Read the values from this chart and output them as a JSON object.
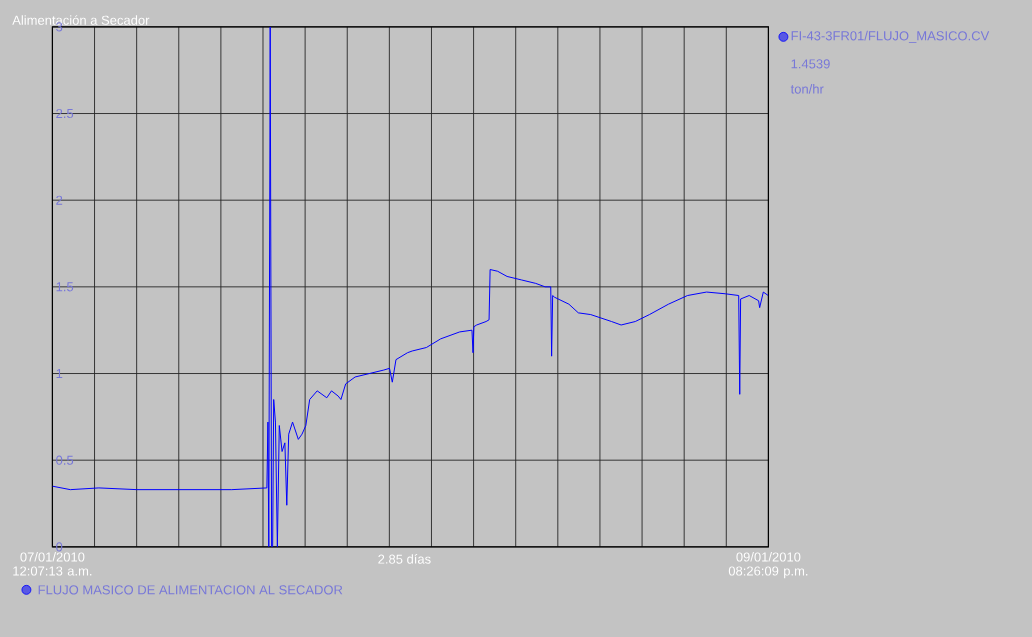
{
  "chart_data": {
    "type": "line",
    "title": "Alimentación a Secador",
    "xlabel": "2.85 días",
    "series": [
      {
        "name": "FI-43-3FR01/FLUJO_MASICO.CV",
        "color": "#0000ff",
        "x": [
          "2010-01-07T00:07:13",
          "2010-01-07T01:50",
          "2010-01-07T04:33",
          "2010-01-07T08:11",
          "2010-01-07T12:42",
          "2010-01-07T17:14",
          "2010-01-07T20:35",
          "2010-01-07T20:41",
          "2010-01-07T20:46",
          "2010-01-07T20:54",
          "2010-01-07T21:02",
          "2010-01-07T21:08",
          "2010-01-07T21:14",
          "2010-01-07T21:24",
          "2010-01-07T21:35",
          "2010-01-07T21:46",
          "2010-01-07T22:02",
          "2010-01-07T22:18",
          "2010-01-07T22:29",
          "2010-01-07T22:40",
          "2010-01-07T23:02",
          "2010-01-07T23:35",
          "2010-01-07T23:56",
          "2010-01-08T00:18",
          "2010-01-08T00:40",
          "2010-01-08T01:23",
          "2010-01-08T02:18",
          "2010-01-08T02:45",
          "2010-01-08T03:23",
          "2010-01-08T03:39",
          "2010-01-08T04:06",
          "2010-01-08T05:00",
          "2010-01-08T06:22",
          "2010-01-08T07:44",
          "2010-01-08T08:17",
          "2010-01-08T08:33",
          "2010-01-08T08:54",
          "2010-01-08T10:00",
          "2010-01-08T10:27",
          "2010-01-08T11:48",
          "2010-01-08T13:10",
          "2010-01-08T14:59",
          "2010-01-08T16:09",
          "2010-01-08T16:15",
          "2010-01-08T16:20",
          "2010-01-08T16:36",
          "2010-01-08T17:30",
          "2010-01-08T17:47",
          "2010-01-08T17:53",
          "2010-01-08T18:36",
          "2010-01-08T19:30",
          "2010-01-08T20:52",
          "2010-01-08T22:14",
          "2010-01-08T23:08",
          "2010-01-08T23:40",
          "2010-01-08T23:45",
          "2010-01-08T23:51",
          "2010-01-09T00:02",
          "2010-01-09T01:24",
          "2010-01-09T02:18",
          "2010-01-09T03:29",
          "2010-01-09T05:28",
          "2010-01-09T06:23",
          "2010-01-09T07:44",
          "2010-01-09T09:05",
          "2010-01-09T10:54",
          "2010-01-09T12:43",
          "2010-01-09T14:32",
          "2010-01-09T16:20",
          "2010-01-09T17:36",
          "2010-01-09T17:42",
          "2010-01-09T17:47",
          "2010-01-09T18:36",
          "2010-01-09T19:30",
          "2010-01-09T19:36",
          "2010-01-09T19:57",
          "2010-01-09T20:25"
        ],
        "values": [
          0.35,
          0.33,
          0.34,
          0.33,
          0.33,
          0.33,
          0.34,
          0.72,
          0,
          3.0,
          0,
          0,
          0.85,
          0.72,
          0,
          0.7,
          0.55,
          0.6,
          0.24,
          0.65,
          0.72,
          0.62,
          0.65,
          0.7,
          0.85,
          0.9,
          0.86,
          0.9,
          0.87,
          0.85,
          0.94,
          0.98,
          1.0,
          1.02,
          1.03,
          0.95,
          1.08,
          1.12,
          1.13,
          1.15,
          1.2,
          1.24,
          1.25,
          1.12,
          1.27,
          1.28,
          1.3,
          1.31,
          1.6,
          1.59,
          1.56,
          1.54,
          1.52,
          1.5,
          1.5,
          1.1,
          1.45,
          1.44,
          1.4,
          1.35,
          1.34,
          1.3,
          1.28,
          1.3,
          1.34,
          1.4,
          1.45,
          1.47,
          1.46,
          1.45,
          0.88,
          1.43,
          1.45,
          1.42,
          1.38,
          1.47,
          1.45
        ]
      }
    ],
    "xlim": [
      "2010-01-07T00:07:13",
      "2010-01-09T20:26:09"
    ],
    "xticks": [
      {
        "value": "2010-01-07T00:07:13",
        "label": "07/01/2010 12:07:13 a.m."
      },
      {
        "value": "2010-01-07T04:08:20",
        "label": null
      },
      {
        "value": "2010-01-07T08:09:27",
        "label": null
      },
      {
        "value": "2010-01-07T12:10:34",
        "label": null
      },
      {
        "value": "2010-01-07T16:11:40",
        "label": null
      },
      {
        "value": "2010-01-07T20:12:47",
        "label": null
      },
      {
        "value": "2010-01-08T00:13:54",
        "label": null
      },
      {
        "value": "2010-01-08T04:15:01",
        "label": null
      },
      {
        "value": "2010-01-08T08:16:08",
        "label": null
      },
      {
        "value": "2010-01-08T12:17:15",
        "label": null
      },
      {
        "value": "2010-01-08T16:18:22",
        "label": null
      },
      {
        "value": "2010-01-08T20:19:28",
        "label": null
      },
      {
        "value": "2010-01-09T00:20:35",
        "label": null
      },
      {
        "value": "2010-01-09T04:21:42",
        "label": null
      },
      {
        "value": "2010-01-09T08:22:49",
        "label": null
      },
      {
        "value": "2010-01-09T12:23:56",
        "label": null
      },
      {
        "value": "2010-01-09T16:25:02",
        "label": null
      },
      {
        "value": "2010-01-09T20:26:09",
        "label": "09/01/2010 08:26:09 p.m."
      }
    ],
    "ylim": [
      0,
      3
    ],
    "yticks": [
      0,
      0.5,
      1,
      1.5,
      2,
      2.5,
      3
    ],
    "grid": true,
    "legend": "right",
    "line_style": "solid",
    "marker": "none",
    "annotations": [
      "1.4539",
      "ton/hr",
      "FLUJO MASICO DE ALIMENTACION AL SECADOR"
    ]
  }
}
